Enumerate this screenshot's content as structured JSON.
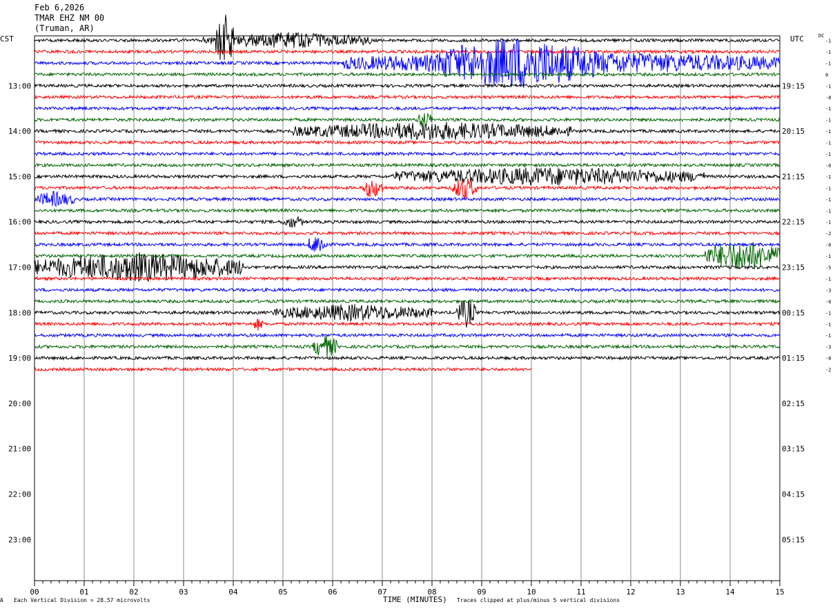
{
  "header": {
    "date": "Feb 6,2026",
    "station": "TMAR EHZ NM 00",
    "location": "(Truman, AR)"
  },
  "left_zone_label": "CST",
  "right_zone_label": "UTC",
  "dc_label": "DC",
  "footer": {
    "scale_note": "Each Vertical Division =   28.57 microvolts",
    "xlabel": "TIME (MINUTES)",
    "clip_note": "Traces clipped at plus/minus 5 vertical divisions",
    "corner_mark": "A"
  },
  "colors": [
    "#000000",
    "#ff0000",
    "#0000ff",
    "#006400"
  ],
  "chart_data": {
    "type": "line",
    "title": "Feb 6,2026",
    "xlabel": "TIME (MINUTES)",
    "x_ticks": [
      "00",
      "01",
      "02",
      "03",
      "04",
      "05",
      "06",
      "07",
      "08",
      "09",
      "10",
      "11",
      "12",
      "13",
      "14",
      "15"
    ],
    "xlim": [
      0,
      15
    ],
    "left_hour_labels": [
      "13:00",
      "14:00",
      "15:00",
      "16:00",
      "17:00",
      "18:00",
      "19:00",
      "20:00",
      "21:00",
      "22:00",
      "23:00"
    ],
    "right_hour_labels": [
      "19:15",
      "20:15",
      "21:15",
      "22:15",
      "23:15",
      "00:15",
      "01:15",
      "02:15",
      "03:15",
      "04:15",
      "05:15"
    ],
    "row_minutes": 15,
    "rows_drawn": 30,
    "last_row_end_minute": 10,
    "dc_offsets": [
      "-1",
      "-1",
      "-1",
      "0",
      "-1",
      "-0",
      "-1",
      "-1",
      "-1",
      "-1",
      "-1",
      "-0",
      "-1",
      "-1",
      "-1",
      "-1",
      "-1",
      "-2",
      "-0",
      "-1",
      "-5",
      "-1",
      "-3",
      "-0",
      "-1",
      "-1",
      "-1",
      "-3",
      "-0",
      "-2"
    ],
    "events": [
      {
        "row": 0,
        "start_min": 3.4,
        "end_min": 6.8,
        "amp": 12
      },
      {
        "row": 0,
        "start_min": 3.65,
        "end_min": 4.0,
        "amp": 40
      },
      {
        "row": 2,
        "start_min": 6.2,
        "end_min": 15,
        "amp": 18
      },
      {
        "row": 2,
        "start_min": 8.1,
        "end_min": 11.3,
        "amp": 40
      },
      {
        "row": 8,
        "start_min": 5.2,
        "end_min": 10.8,
        "amp": 14
      },
      {
        "row": 7,
        "start_min": 7.7,
        "end_min": 8.0,
        "amp": 14
      },
      {
        "row": 12,
        "start_min": 7.2,
        "end_min": 13.5,
        "amp": 14
      },
      {
        "row": 13,
        "start_min": 6.6,
        "end_min": 7.0,
        "amp": 16
      },
      {
        "row": 13,
        "start_min": 8.4,
        "end_min": 8.9,
        "amp": 18
      },
      {
        "row": 14,
        "start_min": 0.0,
        "end_min": 0.8,
        "amp": 12
      },
      {
        "row": 16,
        "start_min": 5.0,
        "end_min": 5.4,
        "amp": 10
      },
      {
        "row": 18,
        "start_min": 5.5,
        "end_min": 5.9,
        "amp": 16
      },
      {
        "row": 19,
        "start_min": 13.5,
        "end_min": 15,
        "amp": 24
      },
      {
        "row": 20,
        "start_min": 0.0,
        "end_min": 4.2,
        "amp": 22
      },
      {
        "row": 24,
        "start_min": 4.8,
        "end_min": 8.0,
        "amp": 13
      },
      {
        "row": 24,
        "start_min": 8.5,
        "end_min": 8.9,
        "amp": 22
      },
      {
        "row": 25,
        "start_min": 4.4,
        "end_min": 4.6,
        "amp": 10
      },
      {
        "row": 27,
        "start_min": 5.6,
        "end_min": 6.1,
        "amp": 18
      }
    ]
  }
}
